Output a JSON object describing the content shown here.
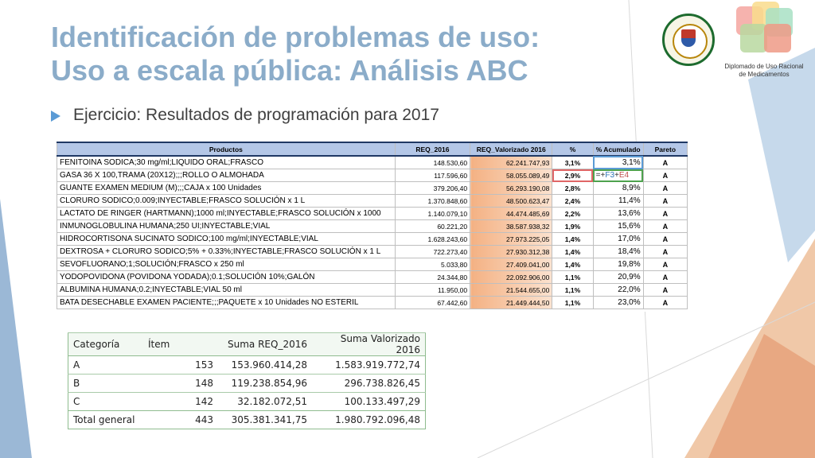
{
  "slide": {
    "title_line1": "Identificación de problemas de uso:",
    "title_line2": "Uso a escala pública: Análisis ABC",
    "bullet_text": "Ejercicio: Resultados de programación para 2017",
    "diploma_text": "Diplomado de Uso Racional de Medicamentos"
  },
  "colors": {
    "title": "#8bacc9",
    "accent": "#5b9bd5",
    "header_fill": "#b4c7e7",
    "valorizado_fill": "#f4b183"
  },
  "sheet": {
    "headers": [
      "Productos",
      "REQ_2016",
      "REQ_Valorizado 2016",
      "%",
      "% Acumulado",
      "Pareto"
    ],
    "rows": [
      {
        "producto": "FENITOINA SODICA;30 mg/ml;LIQUIDO ORAL;FRASCO",
        "req": "148.530,60",
        "valorizado": "62.241.747,93",
        "pct": "3,1%",
        "acum": "3,1%",
        "pareto": "A"
      },
      {
        "producto": "GASA 36 X 100,TRAMA (20X12);;;ROLLO O ALMOHADA",
        "req": "117.596,60",
        "valorizado": "58.055.089,49",
        "pct": "2,9%",
        "acum_a": "=+",
        "acum_b": "F3",
        "acum_op": "+",
        "acum_c": "E4",
        "pareto": "A"
      },
      {
        "producto": "GUANTE EXAMEN MEDIUM (M);;;CAJA x 100 Unidades",
        "req": "379.206,40",
        "valorizado": "56.293.190,08",
        "pct": "2,8%",
        "acum": "8,9%",
        "pareto": "A"
      },
      {
        "producto": "CLORURO SODICO;0.009;INYECTABLE;FRASCO SOLUCIÓN x 1 L",
        "req": "1.370.848,60",
        "valorizado": "48.500.623,47",
        "pct": "2,4%",
        "acum": "11,4%",
        "pareto": "A"
      },
      {
        "producto": "LACTATO DE RINGER (HARTMANN);1000 ml;INYECTABLE;FRASCO SOLUCIÓN x 1000",
        "req": "1.140.079,10",
        "valorizado": "44.474.485,69",
        "pct": "2,2%",
        "acum": "13,6%",
        "pareto": "A"
      },
      {
        "producto": "INMUNOGLOBULINA HUMANA;250 UI;INYECTABLE;VIAL",
        "req": "60.221,20",
        "valorizado": "38.587.938,32",
        "pct": "1,9%",
        "acum": "15,6%",
        "pareto": "A"
      },
      {
        "producto": "HIDROCORTISONA SUCINATO SODICO;100 mg/ml;INYECTABLE;VIAL",
        "req": "1.628.243,60",
        "valorizado": "27.973.225,05",
        "pct": "1,4%",
        "acum": "17,0%",
        "pareto": "A"
      },
      {
        "producto": "DEXTROSA + CLORURO SODICO;5% + 0.33%;INYECTABLE;FRASCO SOLUCIÓN x 1 L",
        "req": "722.273,40",
        "valorizado": "27.930.312,38",
        "pct": "1,4%",
        "acum": "18,4%",
        "pareto": "A"
      },
      {
        "producto": "SEVOFLUORANO;1;SOLUCIÓN;FRASCO x 250 ml",
        "req": "5.033,80",
        "valorizado": "27.409.041,00",
        "pct": "1,4%",
        "acum": "19,8%",
        "pareto": "A"
      },
      {
        "producto": "YODOPOVIDONA (POVIDONA YODADA);0.1;SOLUCIÓN 10%;GALÓN",
        "req": "24.344,80",
        "valorizado": "22.092.906,00",
        "pct": "1,1%",
        "acum": "20,9%",
        "pareto": "A"
      },
      {
        "producto": "ALBUMINA HUMANA;0.2;INYECTABLE;VIAL 50 ml",
        "req": "11.950,00",
        "valorizado": "21.544.655,00",
        "pct": "1,1%",
        "acum": "22,0%",
        "pareto": "A"
      },
      {
        "producto": "BATA DESECHABLE EXAMEN PACIENTE;;;PAQUETE x 10 Unidades NO ESTERIL",
        "req": "67.442,60",
        "valorizado": "21.449.444,50",
        "pct": "1,1%",
        "acum": "23,0%",
        "pareto": "A"
      }
    ]
  },
  "summary": {
    "headers": [
      "Categoría",
      "Ítem",
      "Suma REQ_2016",
      "Suma Valorizado 2016"
    ],
    "rows": [
      {
        "cat": "A",
        "item": "153",
        "req": "153.960.414,28",
        "val": "1.583.919.772,74"
      },
      {
        "cat": "B",
        "item": "148",
        "req": "119.238.854,96",
        "val": "296.738.826,45"
      },
      {
        "cat": "C",
        "item": "142",
        "req": "32.182.072,51",
        "val": "100.133.497,29"
      },
      {
        "cat": "Total general",
        "item": "443",
        "req": "305.381.341,75",
        "val": "1.980.792.096,48"
      }
    ]
  }
}
